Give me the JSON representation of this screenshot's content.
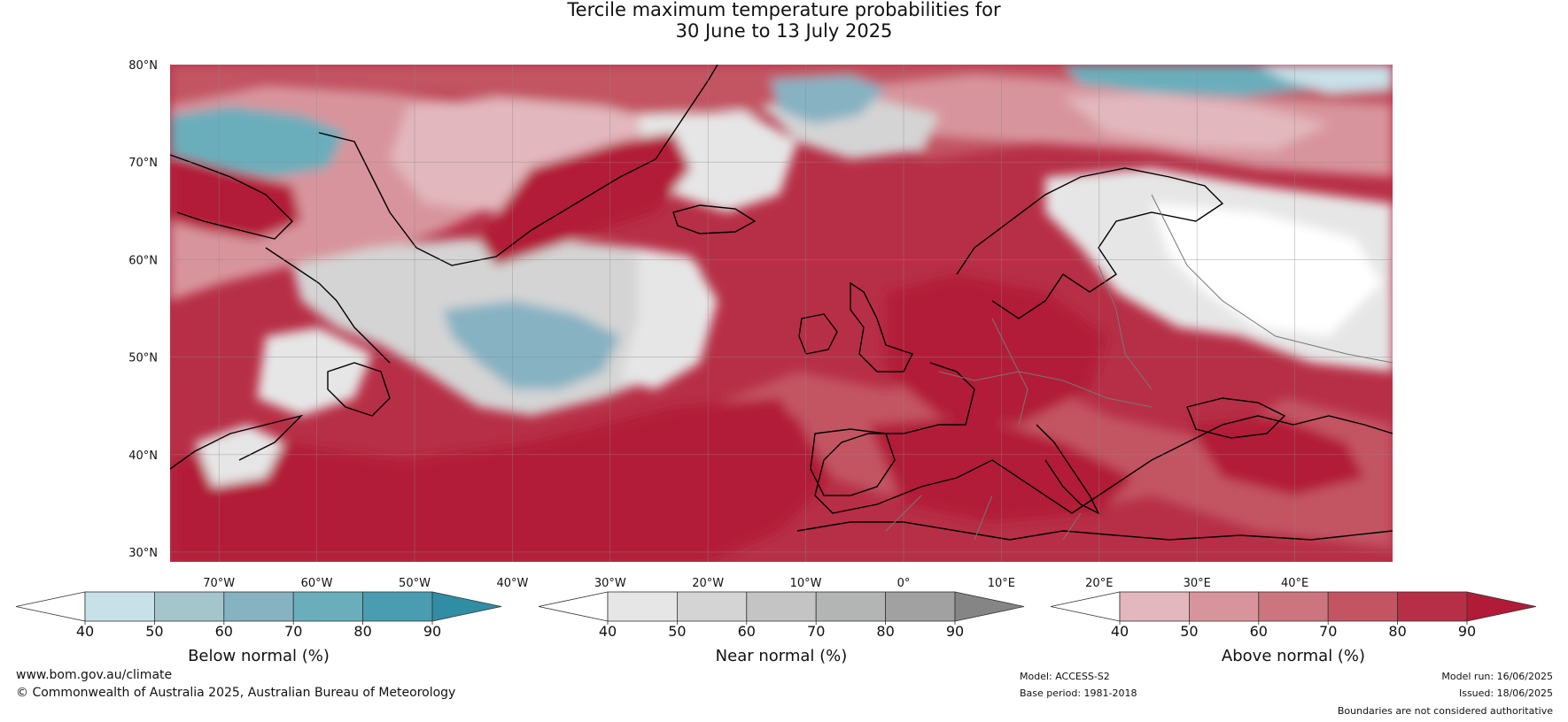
{
  "title": {
    "line1": "Tercile maximum temperature probabilities for",
    "line2": "30 June to 13 July 2025"
  },
  "axes": {
    "lat_labels": [
      "80°N",
      "70°N",
      "60°N",
      "50°N",
      "40°N",
      "30°N"
    ],
    "lat_values": [
      80,
      70,
      60,
      50,
      40,
      30
    ],
    "lon_labels": [
      "70°W",
      "60°W",
      "50°W",
      "40°W",
      "30°W",
      "20°W",
      "10°W",
      "0°",
      "10°E",
      "20°E",
      "30°E",
      "40°E"
    ],
    "lon_values": [
      -70,
      -60,
      -50,
      -40,
      -30,
      -20,
      -10,
      0,
      10,
      20,
      30,
      40
    ],
    "lon_range": [
      -75,
      50
    ],
    "lat_range": [
      29,
      80
    ]
  },
  "colorbars": [
    {
      "name": "below",
      "label": "Below normal (%)",
      "ticks": [
        "40",
        "50",
        "60",
        "70",
        "80",
        "90"
      ],
      "colors": [
        "#ffffff",
        "#c8e1e8",
        "#a4c5cc",
        "#87b2c2",
        "#6aaebb",
        "#4a9db0",
        "#2f8ea3"
      ]
    },
    {
      "name": "near",
      "label": "Near normal (%)",
      "ticks": [
        "40",
        "50",
        "60",
        "70",
        "80",
        "90"
      ],
      "colors": [
        "#ffffff",
        "#e6e6e6",
        "#d4d4d4",
        "#c4c4c4",
        "#b3b5b5",
        "#a1a1a1",
        "#858585"
      ]
    },
    {
      "name": "above",
      "label": "Above normal (%)",
      "ticks": [
        "40",
        "50",
        "60",
        "70",
        "80",
        "90"
      ],
      "colors": [
        "#ffffff",
        "#e2b7bd",
        "#d8949c",
        "#cd757f",
        "#c35563",
        "#b72f46",
        "#b21b38"
      ]
    }
  ],
  "footer": {
    "website": "www.bom.gov.au/climate",
    "copyright": "© Commonwealth of Australia 2025, Australian Bureau of Meteorology",
    "model": "Model: ACCESS-S2",
    "base_period": "Base period: 1981-2018",
    "model_run": "Model run: 16/06/2025",
    "issued": "Issued: 18/06/2025",
    "disclaimer": "Boundaries are not considered authoritative"
  }
}
